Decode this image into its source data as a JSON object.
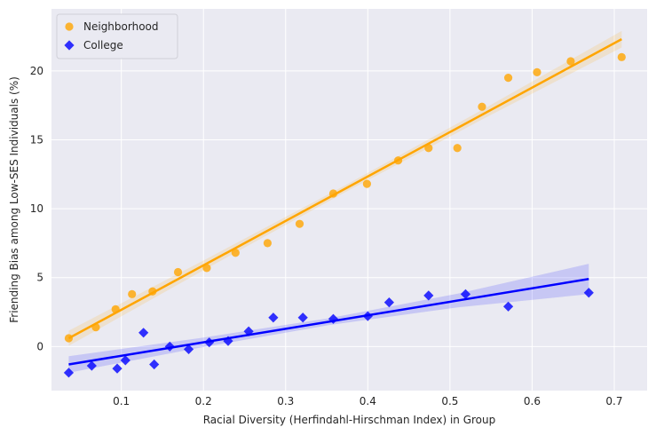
{
  "chart_data": {
    "type": "scatter",
    "xlabel": "Racial Diversity (Herfindahl-Hirschman Index) in Group",
    "ylabel": "Friending Bias among Low-SES Individuals (%)",
    "xlim": [
      0.015,
      0.74
    ],
    "ylim": [
      -3.2,
      24.5
    ],
    "x_ticks": [
      0.1,
      0.2,
      0.3,
      0.4,
      0.5,
      0.6,
      0.7
    ],
    "x_tick_labels": [
      "0.1",
      "0.2",
      "0.3",
      "0.4",
      "0.5",
      "0.6",
      "0.7"
    ],
    "y_ticks": [
      0,
      5,
      10,
      15,
      20
    ],
    "y_tick_labels": [
      "0",
      "5",
      "10",
      "15",
      "20"
    ],
    "grid": true,
    "background": "#eaeaf2",
    "legend_position": "top-left",
    "series": [
      {
        "name": "Neighborhood",
        "marker": "circle",
        "color": "#ffa500",
        "points": [
          [
            0.036,
            0.6
          ],
          [
            0.069,
            1.4
          ],
          [
            0.093,
            2.7
          ],
          [
            0.113,
            3.8
          ],
          [
            0.138,
            4.0
          ],
          [
            0.169,
            5.4
          ],
          [
            0.204,
            5.7
          ],
          [
            0.239,
            6.8
          ],
          [
            0.278,
            7.5
          ],
          [
            0.317,
            8.9
          ],
          [
            0.358,
            11.1
          ],
          [
            0.399,
            11.8
          ],
          [
            0.437,
            13.5
          ],
          [
            0.474,
            14.4
          ],
          [
            0.509,
            14.4
          ],
          [
            0.539,
            17.4
          ],
          [
            0.571,
            19.5
          ],
          [
            0.606,
            19.9
          ],
          [
            0.647,
            20.7
          ],
          [
            0.709,
            21.0
          ]
        ],
        "fit": {
          "x": [
            0.036,
            0.709
          ],
          "y": [
            0.6,
            22.3
          ]
        },
        "ci_halfwidth": [
          0.55,
          0.35,
          0.25,
          0.35,
          0.6
        ]
      },
      {
        "name": "College",
        "marker": "diamond",
        "color": "#0000ff",
        "points": [
          [
            0.036,
            -1.9
          ],
          [
            0.064,
            -1.4
          ],
          [
            0.095,
            -1.6
          ],
          [
            0.105,
            -1.0
          ],
          [
            0.127,
            1.0
          ],
          [
            0.14,
            -1.3
          ],
          [
            0.159,
            0.0
          ],
          [
            0.182,
            -0.2
          ],
          [
            0.207,
            0.3
          ],
          [
            0.23,
            0.4
          ],
          [
            0.255,
            1.1
          ],
          [
            0.285,
            2.1
          ],
          [
            0.321,
            2.1
          ],
          [
            0.358,
            2.0
          ],
          [
            0.4,
            2.2
          ],
          [
            0.426,
            3.2
          ],
          [
            0.474,
            3.7
          ],
          [
            0.519,
            3.8
          ],
          [
            0.571,
            2.9
          ],
          [
            0.669,
            3.9
          ]
        ],
        "fit": {
          "x": [
            0.036,
            0.669
          ],
          "y": [
            -1.3,
            4.9
          ]
        },
        "ci_halfwidth": [
          0.6,
          0.35,
          0.25,
          0.5,
          1.1
        ]
      }
    ]
  }
}
